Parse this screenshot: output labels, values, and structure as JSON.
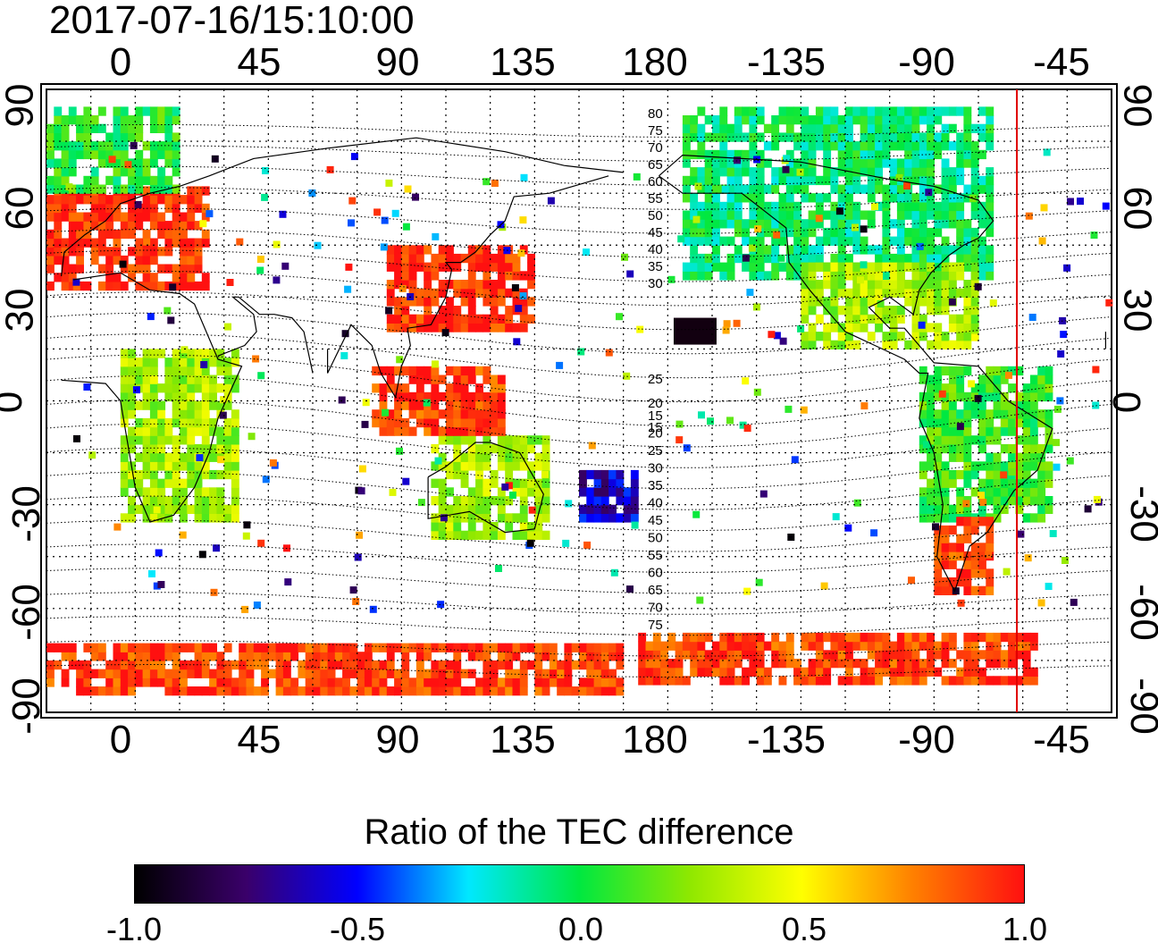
{
  "timestamp": "2017-07-16/15:10:00",
  "top_lon_ticks": [
    "0",
    "45",
    "90",
    "135",
    "180",
    "-135",
    "-90",
    "-45"
  ],
  "bottom_lon_ticks": [
    "0",
    "45",
    "90",
    "135",
    "180",
    "-135",
    "-90",
    "-45"
  ],
  "left_lat_ticks": [
    "90",
    "60",
    "30",
    "0",
    "-30",
    "-60",
    "-90"
  ],
  "right_lat_ticks": [
    "90",
    "60",
    "30",
    "0",
    "-30",
    "-60",
    "-90"
  ],
  "contour_labels_upper": [
    "80",
    "75",
    "70",
    "65",
    "60",
    "55",
    "50",
    "45",
    "40",
    "35",
    "30",
    "25",
    "20",
    "15"
  ],
  "contour_labels_lower": [
    "15",
    "20",
    "25",
    "30",
    "35",
    "40",
    "45",
    "50",
    "55",
    "60",
    "65",
    "70",
    "75"
  ],
  "colorbar": {
    "title": "Ratio of the TEC difference",
    "ticks": [
      "-1.0",
      "-0.5",
      "0.0",
      "0.5",
      "1.0"
    ],
    "range": [
      -1.0,
      1.0
    ],
    "colors": [
      "#000000",
      "#3a006a",
      "#0000ff",
      "#00e8ff",
      "#00e840",
      "#90e800",
      "#ffff00",
      "#ff8000",
      "#ff1010"
    ]
  },
  "marker_line": {
    "lon": -47,
    "color": "#e00000"
  },
  "grid": {
    "lon_step_deg": 15,
    "lat_step_deg": 15
  }
}
